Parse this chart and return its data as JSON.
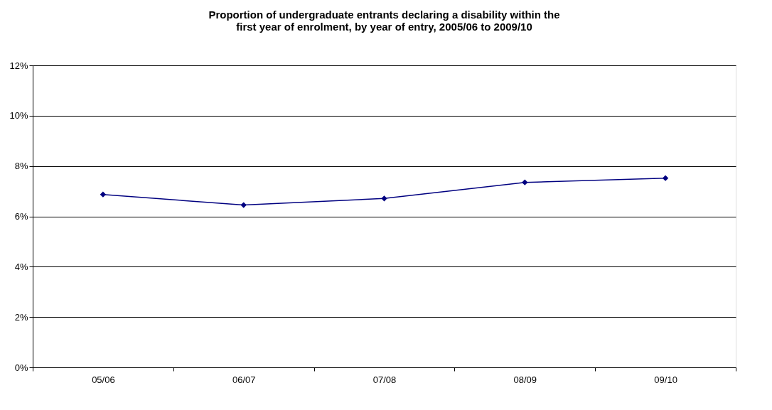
{
  "chart_data": {
    "type": "line",
    "title": "Proportion of undergraduate entrants declaring a disability within the first year of enrolment, by year of entry, 2005/06 to 2009/10",
    "categories": [
      "05/06",
      "06/07",
      "07/08",
      "08/09",
      "09/10"
    ],
    "series": [
      {
        "color": "#000080",
        "values": [
          6.87,
          6.45,
          6.71,
          7.35,
          7.52
        ]
      }
    ],
    "ylim": [
      0,
      12
    ],
    "yticks": [
      {
        "value": 0,
        "label": "0%"
      },
      {
        "value": 2,
        "label": "2%"
      },
      {
        "value": 4,
        "label": "4%"
      },
      {
        "value": 6,
        "label": "6%"
      },
      {
        "value": 8,
        "label": "8%"
      },
      {
        "value": 10,
        "label": "10%"
      },
      {
        "value": 12,
        "label": "12%"
      }
    ],
    "grid": "y",
    "legend": false,
    "marker": "diamond",
    "line_style": "solid"
  }
}
